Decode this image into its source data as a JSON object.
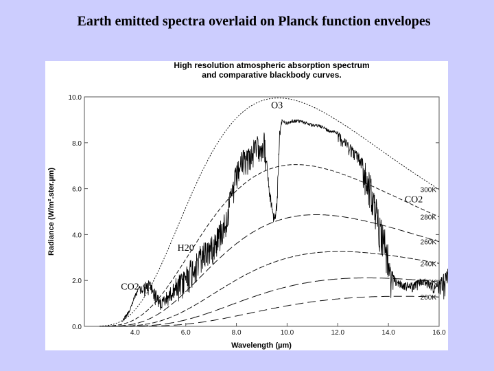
{
  "slide": {
    "title": "Earth emitted spectra overlaid on Planck function envelopes"
  },
  "chart_data": {
    "type": "line",
    "title": "High resolution atmospheric absorption spectrum",
    "subtitle": "and comparative blackbody curves.",
    "xlabel": "Wavelength (µm)",
    "ylabel": "Radiance (W/m².ster.µm)",
    "xlim": [
      2.0,
      16.0
    ],
    "ylim": [
      0.0,
      10.0
    ],
    "x_ticks": [
      4.0,
      6.0,
      8.0,
      10.0,
      12.0,
      14.0,
      16.0
    ],
    "x_tick_labels": [
      "4.0",
      "6.0",
      "8.0",
      "10.0",
      "12.0",
      "14.0",
      "16.0"
    ],
    "y_ticks": [
      0.0,
      2.0,
      4.0,
      6.0,
      8.0,
      10.0
    ],
    "y_tick_labels": [
      "0.0",
      "2.0",
      "4.0",
      "6.0",
      "8.0",
      "10.0"
    ],
    "grid": false,
    "blackbody_curves": [
      {
        "label": "300K",
        "T": 300
      },
      {
        "label": "280K",
        "T": 280
      },
      {
        "label": "260K",
        "T": 260
      },
      {
        "label": "240K",
        "T": 240
      },
      {
        "label": "220K",
        "T": 220
      },
      {
        "label": "200K",
        "T": 200
      }
    ],
    "spectrum": {
      "x": [
        3.5,
        3.8,
        4.0,
        4.2,
        4.4,
        4.6,
        4.8,
        5.0,
        5.3,
        5.6,
        6.0,
        6.3,
        6.6,
        7.0,
        7.3,
        7.6,
        8.0,
        8.2,
        8.5,
        8.8,
        9.1,
        9.3,
        9.5,
        9.6,
        9.7,
        9.8,
        10.0,
        10.2,
        10.5,
        10.8,
        11.0,
        11.3,
        11.6,
        12.0,
        12.3,
        12.6,
        13.0,
        13.3,
        13.5,
        13.7,
        13.9,
        14.1,
        14.3,
        14.6,
        15.0,
        15.3,
        15.6,
        15.8,
        16.0,
        16.3,
        16.6
      ],
      "y": [
        0.3,
        0.8,
        1.4,
        1.8,
        1.9,
        2.0,
        1.6,
        1.2,
        1.5,
        2.0,
        2.6,
        3.0,
        3.5,
        3.9,
        4.4,
        5.2,
        7.0,
        7.6,
        7.8,
        8.2,
        8.4,
        6.0,
        4.8,
        5.5,
        8.5,
        9.0,
        8.9,
        9.0,
        9.0,
        8.9,
        8.8,
        8.8,
        8.6,
        8.5,
        8.2,
        7.8,
        7.3,
        6.5,
        5.5,
        4.8,
        4.0,
        2.5,
        2.1,
        1.9,
        1.9,
        2.1,
        2.0,
        1.8,
        2.0,
        2.5,
        3.0
      ]
    },
    "annotations": [
      {
        "text": "O3",
        "x": 9.6,
        "y": 9.5
      },
      {
        "text": "CO2",
        "x": 15.0,
        "y": 5.4
      },
      {
        "text": "H20",
        "x": 6.0,
        "y": 3.3
      },
      {
        "text": "CO2",
        "x": 3.8,
        "y": 1.6
      }
    ]
  }
}
